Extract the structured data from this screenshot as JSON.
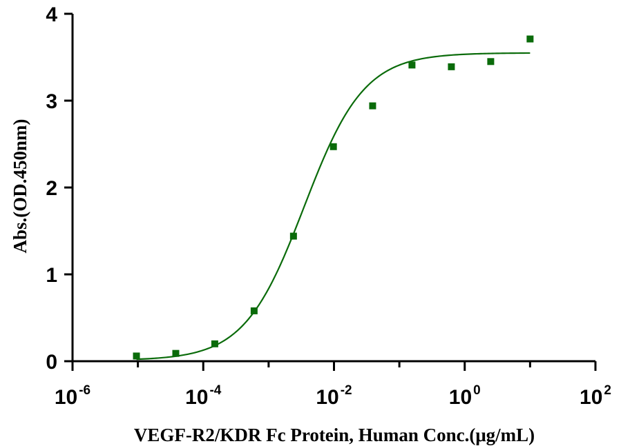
{
  "chart_data": {
    "type": "scatter",
    "xlabel": "VEGF-R2/KDR Fc Protein, Human Conc.(μg/mL)",
    "ylabel": "Abs.(OD.450nm)",
    "x_scale": "log",
    "xlim": [
      1e-06,
      100
    ],
    "ylim": [
      0,
      4
    ],
    "x_ticks": [
      {
        "base": "10",
        "exp": "-6",
        "value": 1e-06
      },
      {
        "base": "10",
        "exp": "-4",
        "value": 0.0001
      },
      {
        "base": "10",
        "exp": "-2",
        "value": 0.01
      },
      {
        "base": "10",
        "exp": "0",
        "value": 1
      },
      {
        "base": "10",
        "exp": "2",
        "value": 100
      }
    ],
    "y_ticks": [
      {
        "label": "0",
        "value": 0
      },
      {
        "label": "1",
        "value": 1
      },
      {
        "label": "2",
        "value": 2
      },
      {
        "label": "3",
        "value": 3
      },
      {
        "label": "4",
        "value": 4
      }
    ],
    "grid": false,
    "series": [
      {
        "marker": "square",
        "color": "#0a6b0a",
        "x": [
          9.5e-06,
          3.8e-05,
          0.00015,
          0.0006,
          0.0024,
          0.0098,
          0.039,
          0.156,
          0.625,
          2.5,
          10
        ],
        "y": [
          0.06,
          0.09,
          0.2,
          0.58,
          1.44,
          2.47,
          2.94,
          3.41,
          3.39,
          3.45,
          3.71
        ]
      }
    ],
    "fit_curve": {
      "model": "4PL",
      "color": "#0a6b0a",
      "bottom": 0.01,
      "top": 3.55,
      "ec50": 0.0035,
      "hill": 0.95,
      "x_range": [
        9.5e-06,
        10
      ]
    }
  }
}
